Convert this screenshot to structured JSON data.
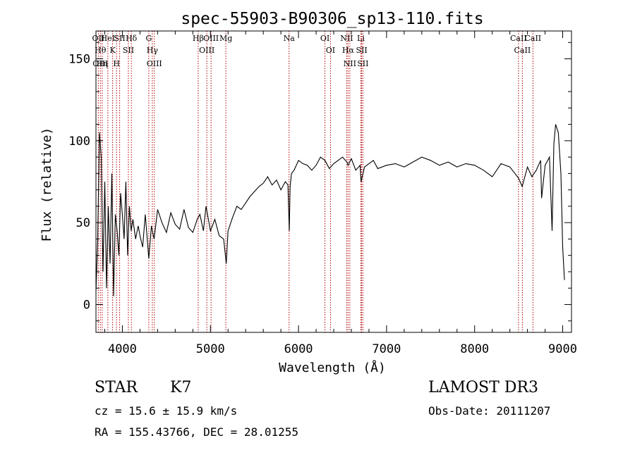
{
  "chart_data": {
    "type": "line",
    "title": "spec-55903-B90306_sp13-110.fits",
    "xlabel": "Wavelength (Å)",
    "ylabel": "Flux (relative)",
    "xlim": [
      3700,
      9100
    ],
    "ylim": [
      -17,
      167
    ],
    "xticks": [
      4000,
      5000,
      6000,
      7000,
      8000,
      9000
    ],
    "yticks": [
      0,
      50,
      100,
      150
    ],
    "grid": false,
    "legend": "none",
    "series": [
      {
        "name": "flux",
        "color": "#000000",
        "x": [
          3700,
          3720,
          3740,
          3760,
          3780,
          3800,
          3820,
          3840,
          3860,
          3880,
          3900,
          3920,
          3940,
          3960,
          3980,
          4000,
          4020,
          4040,
          4060,
          4080,
          4100,
          4120,
          4150,
          4180,
          4200,
          4230,
          4260,
          4300,
          4330,
          4360,
          4400,
          4450,
          4500,
          4550,
          4600,
          4650,
          4700,
          4750,
          4800,
          4850,
          4880,
          4920,
          4950,
          5000,
          5050,
          5100,
          5150,
          5180,
          5200,
          5250,
          5300,
          5350,
          5400,
          5450,
          5500,
          5550,
          5600,
          5650,
          5700,
          5750,
          5800,
          5850,
          5880,
          5895,
          5905,
          5920,
          5950,
          6000,
          6050,
          6100,
          6150,
          6200,
          6250,
          6300,
          6350,
          6400,
          6450,
          6500,
          6550,
          6563,
          6600,
          6650,
          6700,
          6710,
          6750,
          6800,
          6850,
          6900,
          7000,
          7100,
          7200,
          7300,
          7400,
          7500,
          7600,
          7700,
          7800,
          7900,
          8000,
          8100,
          8200,
          8300,
          8400,
          8500,
          8540,
          8600,
          8650,
          8700,
          8750,
          8760,
          8800,
          8850,
          8880,
          8900,
          8920,
          8950,
          8980,
          9000,
          9020
        ],
        "values": [
          8,
          40,
          105,
          90,
          20,
          75,
          10,
          60,
          25,
          80,
          5,
          55,
          45,
          30,
          68,
          55,
          40,
          75,
          30,
          60,
          45,
          52,
          40,
          48,
          42,
          35,
          55,
          28,
          48,
          40,
          58,
          50,
          44,
          56,
          49,
          46,
          58,
          47,
          44,
          52,
          55,
          45,
          60,
          45,
          52,
          42,
          40,
          25,
          45,
          53,
          60,
          58,
          62,
          66,
          69,
          72,
          74,
          78,
          73,
          76,
          70,
          75,
          73,
          45,
          72,
          80,
          82,
          88,
          86,
          85,
          82,
          85,
          90,
          88,
          83,
          86,
          88,
          90,
          87,
          85,
          89,
          82,
          85,
          75,
          84,
          86,
          88,
          83,
          85,
          86,
          84,
          87,
          90,
          88,
          85,
          87,
          84,
          86,
          85,
          82,
          78,
          86,
          84,
          77,
          72,
          84,
          78,
          82,
          88,
          65,
          85,
          90,
          45,
          98,
          110,
          105,
          80,
          35,
          15
        ],
        "tick_labels_y": [
          "0",
          "50",
          "100",
          "150"
        ]
      }
    ],
    "lines": [
      {
        "w": 3727,
        "labels": [
          "OII"
        ]
      },
      {
        "w": 3750,
        "labels": [
          "Hθ",
          "OIII"
        ]
      },
      {
        "w": 3771,
        "labels": [
          "Hη"
        ]
      },
      {
        "w": 3835,
        "labels": [
          "HeI"
        ]
      },
      {
        "w": 3889,
        "labels": [
          "K"
        ]
      },
      {
        "w": 3934,
        "labels": [
          "H"
        ]
      },
      {
        "w": 3969,
        "labels": [
          "SII"
        ]
      },
      {
        "w": 4068,
        "labels": [
          "SII"
        ]
      },
      {
        "w": 4102,
        "labels": [
          "Hδ"
        ]
      },
      {
        "w": 4300,
        "labels": [
          "G"
        ]
      },
      {
        "w": 4340,
        "labels": [
          "Hγ"
        ]
      },
      {
        "w": 4363,
        "labels": [
          "OIII"
        ]
      },
      {
        "w": 4861,
        "labels": [
          "Hβ"
        ]
      },
      {
        "w": 4959,
        "labels": [
          "OIII"
        ]
      },
      {
        "w": 5007,
        "labels": [
          "OIII"
        ]
      },
      {
        "w": 5175,
        "labels": [
          "Mg"
        ]
      },
      {
        "w": 5893,
        "labels": [
          "Na"
        ]
      },
      {
        "w": 6300,
        "labels": [
          "OI"
        ]
      },
      {
        "w": 6363,
        "labels": [
          "OI"
        ]
      },
      {
        "w": 6548,
        "labels": [
          "NII"
        ]
      },
      {
        "w": 6563,
        "labels": [
          "Hα"
        ]
      },
      {
        "w": 6583,
        "labels": [
          "NII"
        ]
      },
      {
        "w": 6708,
        "labels": [
          "Li"
        ]
      },
      {
        "w": 6717,
        "labels": [
          "SII"
        ]
      },
      {
        "w": 6731,
        "labels": [
          "SII"
        ]
      },
      {
        "w": 8498,
        "labels": [
          "CaII"
        ]
      },
      {
        "w": 8542,
        "labels": [
          "CaII"
        ]
      },
      {
        "w": 8662,
        "labels": [
          "CaII"
        ]
      }
    ]
  },
  "info": {
    "class": "STAR",
    "subclass": "K7",
    "cz": "cz = 15.6 ± 15.9 km/s",
    "radec": "RA = 155.43766, DEC =  28.01255",
    "survey": "LAMOST DR3",
    "obsdate": "Obs-Date: 20111207"
  }
}
